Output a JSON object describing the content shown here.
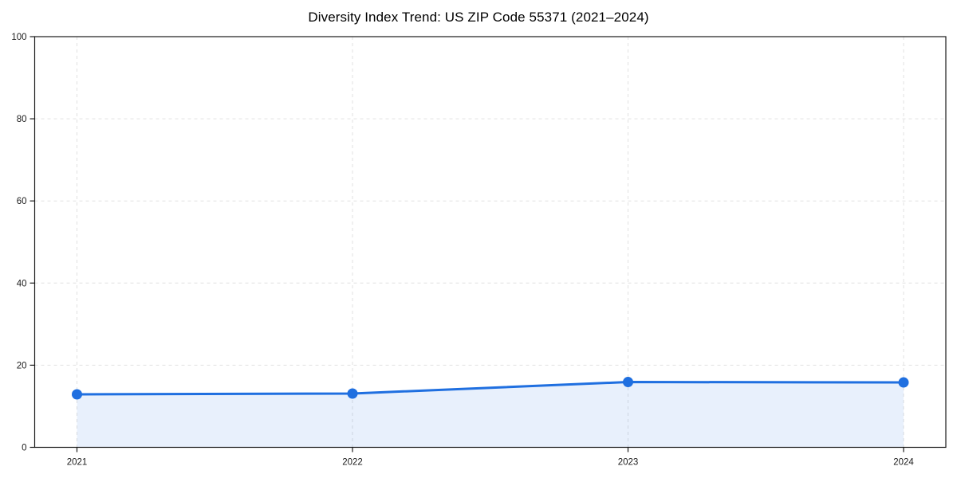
{
  "chart_data": {
    "type": "area",
    "title": "Diversity Index Trend: US ZIP Code 55371 (2021–2024)",
    "x": [
      2021,
      2022,
      2023,
      2024
    ],
    "series": [
      {
        "name": "Diversity Index",
        "values": [
          12.9,
          13.1,
          15.9,
          15.8
        ]
      }
    ],
    "xlabel": "",
    "ylabel": "",
    "ylim": [
      0,
      100
    ],
    "yticks": [
      0,
      20,
      40,
      60,
      80,
      100
    ],
    "xticklabels": [
      "2021",
      "2022",
      "2023",
      "2024"
    ],
    "grid": true,
    "grid_style": "dashed",
    "legend": "none",
    "colors": {
      "line": "#1f6fe0",
      "marker": "#1f6fe0",
      "fill": "rgba(31,111,224,0.10)",
      "grid": "#e1e1e1",
      "spine": "#1a1a1a",
      "tick_label": "#1a1a1a",
      "title": "#000000",
      "background": "#ffffff"
    }
  }
}
